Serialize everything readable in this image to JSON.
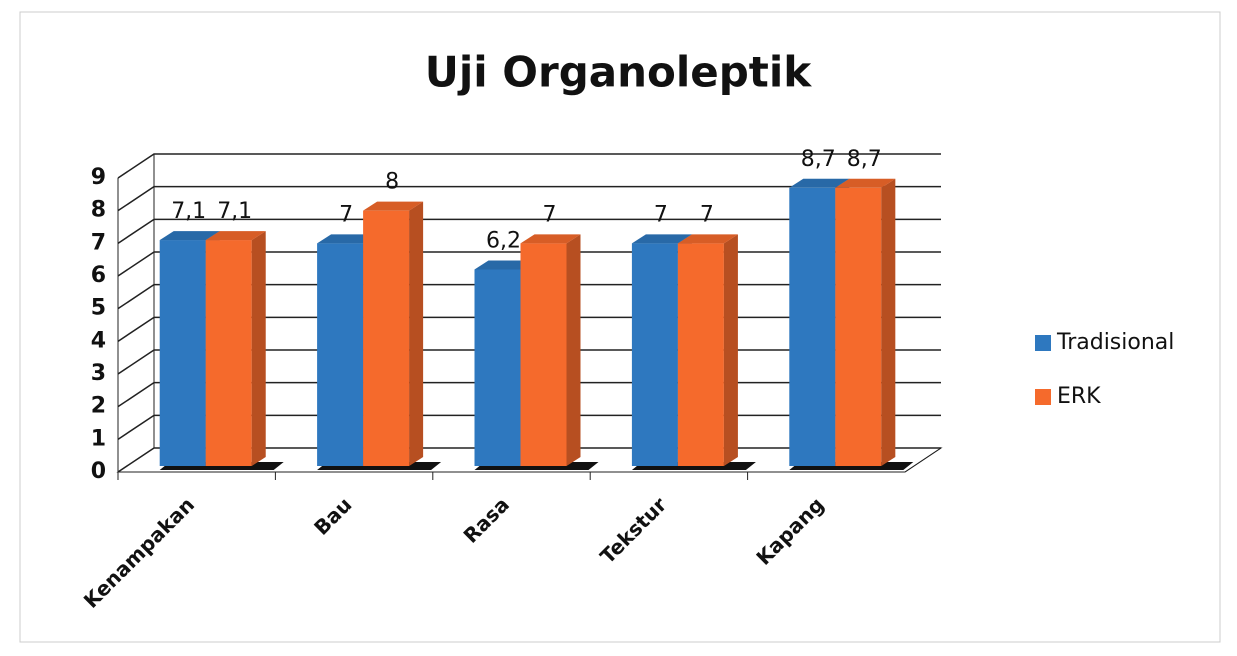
{
  "chart_data": {
    "type": "bar3d",
    "title": "Uji Organoleptik",
    "categories": [
      "Kenampakan",
      "Bau",
      "Rasa",
      "Tekstur",
      "Kapang"
    ],
    "series": [
      {
        "name": "Tradisional",
        "color": "#2e78bf",
        "values": [
          7.1,
          7,
          6.2,
          7,
          8.7
        ],
        "value_labels": [
          "7,1",
          "7",
          "6,2",
          "7",
          "8,7"
        ]
      },
      {
        "name": "ERK",
        "color": "#f56a2c",
        "values": [
          7.1,
          8,
          7,
          7,
          8.7
        ],
        "value_labels": [
          "7,1",
          "8",
          "7",
          "7",
          "8,7"
        ]
      }
    ],
    "ylim": [
      0,
      9
    ],
    "yticks": [
      0,
      1,
      2,
      3,
      4,
      5,
      6,
      7,
      8,
      9
    ],
    "grid": true,
    "legend": "right"
  }
}
